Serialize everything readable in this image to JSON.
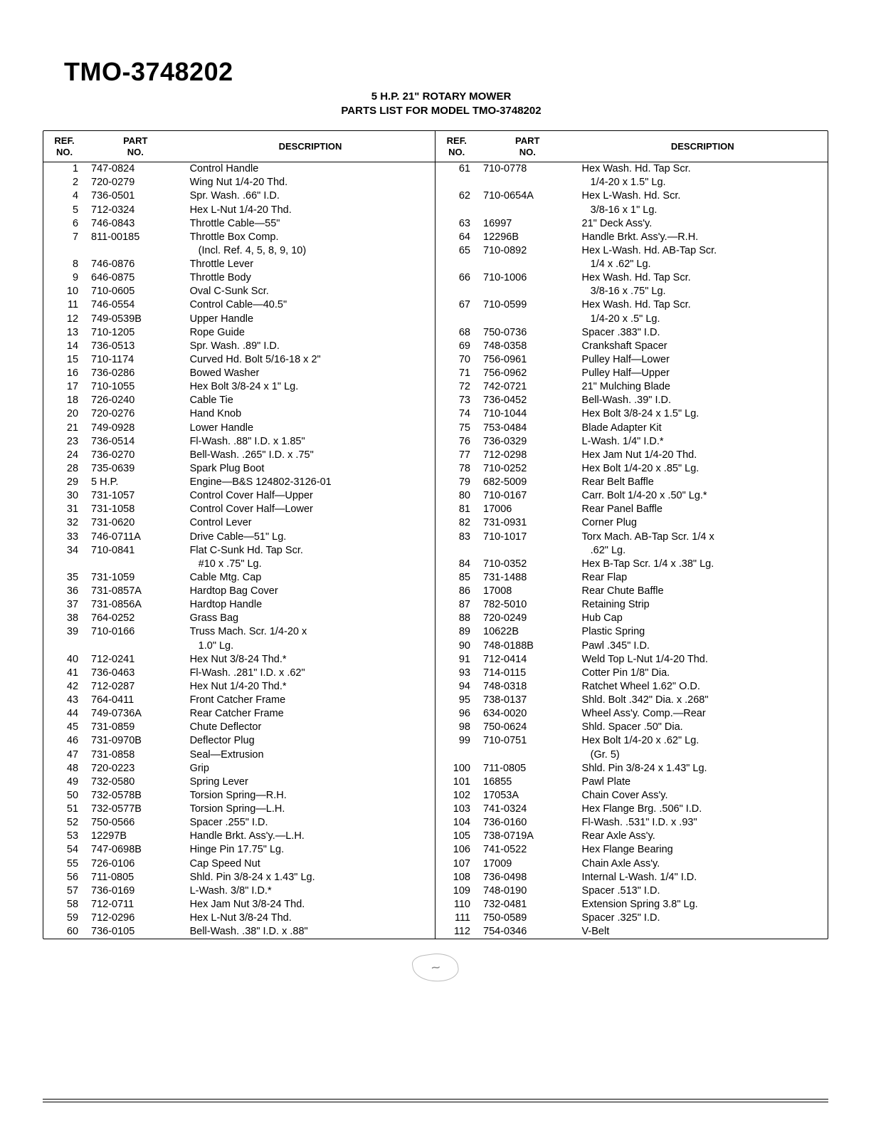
{
  "header": {
    "model": "TMO-3748202",
    "subtitle1": "5 H.P. 21\" ROTARY MOWER",
    "subtitle2": "PARTS LIST FOR MODEL TMO-3748202"
  },
  "columns": {
    "ref": "REF.\nNO.",
    "part": "PART\nNO.",
    "desc": "DESCRIPTION"
  },
  "left_rows": [
    {
      "ref": "1",
      "part": "747-0824",
      "desc": "Control Handle"
    },
    {
      "ref": "2",
      "part": "720-0279",
      "desc": "Wing Nut 1/4-20 Thd."
    },
    {
      "ref": "4",
      "part": "736-0501",
      "desc": "Spr. Wash. .66\" I.D."
    },
    {
      "ref": "5",
      "part": "712-0324",
      "desc": "Hex L-Nut 1/4-20 Thd."
    },
    {
      "ref": "6",
      "part": "746-0843",
      "desc": "Throttle Cable—55\""
    },
    {
      "ref": "7",
      "part": "811-00185",
      "desc": "Throttle Box Comp."
    },
    {
      "ref": "",
      "part": "",
      "desc": "   (Incl. Ref. 4, 5, 8, 9, 10)"
    },
    {
      "ref": "8",
      "part": "746-0876",
      "desc": "Throttle Lever"
    },
    {
      "ref": "9",
      "part": "646-0875",
      "desc": "Throttle Body"
    },
    {
      "ref": "10",
      "part": "710-0605",
      "desc": "Oval C-Sunk Scr."
    },
    {
      "ref": "11",
      "part": "746-0554",
      "desc": "Control Cable—40.5\""
    },
    {
      "ref": "12",
      "part": "749-0539B",
      "desc": "Upper Handle"
    },
    {
      "ref": "13",
      "part": "710-1205",
      "desc": "Rope Guide"
    },
    {
      "ref": "14",
      "part": "736-0513",
      "desc": "Spr. Wash. .89\" I.D."
    },
    {
      "ref": "15",
      "part": "710-1174",
      "desc": "Curved Hd. Bolt 5/16-18 x 2\""
    },
    {
      "ref": "16",
      "part": "736-0286",
      "desc": "Bowed Washer"
    },
    {
      "ref": "17",
      "part": "710-1055",
      "desc": "Hex Bolt 3/8-24 x 1\" Lg."
    },
    {
      "ref": "18",
      "part": "726-0240",
      "desc": "Cable Tie"
    },
    {
      "ref": "20",
      "part": "720-0276",
      "desc": "Hand Knob"
    },
    {
      "ref": "21",
      "part": "749-0928",
      "desc": "Lower Handle"
    },
    {
      "ref": "23",
      "part": "736-0514",
      "desc": "Fl-Wash. .88\" I.D. x 1.85\""
    },
    {
      "ref": "24",
      "part": "736-0270",
      "desc": "Bell-Wash. .265\" I.D. x .75\""
    },
    {
      "ref": "28",
      "part": "735-0639",
      "desc": "Spark Plug Boot"
    },
    {
      "ref": "29",
      "part": "5 H.P.",
      "desc": "Engine—B&S 124802-3126-01"
    },
    {
      "ref": "30",
      "part": "731-1057",
      "desc": "Control Cover Half—Upper"
    },
    {
      "ref": "31",
      "part": "731-1058",
      "desc": "Control Cover Half—Lower"
    },
    {
      "ref": "32",
      "part": "731-0620",
      "desc": "Control Lever"
    },
    {
      "ref": "33",
      "part": "746-0711A",
      "desc": "Drive Cable—51\" Lg."
    },
    {
      "ref": "34",
      "part": "710-0841",
      "desc": "Flat C-Sunk Hd. Tap Scr."
    },
    {
      "ref": "",
      "part": "",
      "desc": "   #10 x .75\" Lg."
    },
    {
      "ref": "35",
      "part": "731-1059",
      "desc": "Cable Mtg. Cap"
    },
    {
      "ref": "36",
      "part": "731-0857A",
      "desc": "Hardtop Bag Cover"
    },
    {
      "ref": "37",
      "part": "731-0856A",
      "desc": "Hardtop Handle"
    },
    {
      "ref": "38",
      "part": "764-0252",
      "desc": "Grass Bag"
    },
    {
      "ref": "39",
      "part": "710-0166",
      "desc": "Truss Mach. Scr. 1/4-20 x"
    },
    {
      "ref": "",
      "part": "",
      "desc": "   1.0\" Lg."
    },
    {
      "ref": "40",
      "part": "712-0241",
      "desc": "Hex Nut 3/8-24 Thd.*"
    },
    {
      "ref": "41",
      "part": "736-0463",
      "desc": "Fl-Wash. .281\" I.D. x .62\""
    },
    {
      "ref": "42",
      "part": "712-0287",
      "desc": "Hex Nut 1/4-20 Thd.*"
    },
    {
      "ref": "43",
      "part": "764-0411",
      "desc": "Front Catcher Frame"
    },
    {
      "ref": "44",
      "part": "749-0736A",
      "desc": "Rear Catcher Frame"
    },
    {
      "ref": "45",
      "part": "731-0859",
      "desc": "Chute Deflector"
    },
    {
      "ref": "46",
      "part": "731-0970B",
      "desc": "Deflector Plug"
    },
    {
      "ref": "47",
      "part": "731-0858",
      "desc": "Seal—Extrusion"
    },
    {
      "ref": "48",
      "part": "720-0223",
      "desc": "Grip"
    },
    {
      "ref": "49",
      "part": "732-0580",
      "desc": "Spring Lever"
    },
    {
      "ref": "50",
      "part": "732-0578B",
      "desc": "Torsion Spring—R.H."
    },
    {
      "ref": "51",
      "part": "732-0577B",
      "desc": "Torsion Spring—L.H."
    },
    {
      "ref": "52",
      "part": "750-0566",
      "desc": "Spacer .255\" I.D."
    },
    {
      "ref": "53",
      "part": "12297B",
      "desc": "Handle Brkt. Ass'y.—L.H."
    },
    {
      "ref": "54",
      "part": "747-0698B",
      "desc": "Hinge Pin 17.75\" Lg."
    },
    {
      "ref": "55",
      "part": "726-0106",
      "desc": "Cap Speed Nut"
    },
    {
      "ref": "56",
      "part": "711-0805",
      "desc": "Shld. Pin 3/8-24 x 1.43\" Lg."
    },
    {
      "ref": "57",
      "part": "736-0169",
      "desc": "L-Wash. 3/8\" I.D.*"
    },
    {
      "ref": "58",
      "part": "712-0711",
      "desc": "Hex Jam Nut 3/8-24 Thd."
    },
    {
      "ref": "59",
      "part": "712-0296",
      "desc": "Hex L-Nut 3/8-24 Thd."
    },
    {
      "ref": "60",
      "part": "736-0105",
      "desc": "Bell-Wash. .38\" I.D. x .88\""
    }
  ],
  "right_rows": [
    {
      "ref": "61",
      "part": "710-0778",
      "desc": "Hex Wash. Hd. Tap Scr."
    },
    {
      "ref": "",
      "part": "",
      "desc": "   1/4-20 x 1.5\" Lg."
    },
    {
      "ref": "62",
      "part": "710-0654A",
      "desc": "Hex L-Wash. Hd. Scr."
    },
    {
      "ref": "",
      "part": "",
      "desc": "   3/8-16 x 1\" Lg."
    },
    {
      "ref": "63",
      "part": "16997",
      "desc": "21\" Deck Ass'y."
    },
    {
      "ref": "64",
      "part": "12296B",
      "desc": "Handle Brkt. Ass'y.—R.H."
    },
    {
      "ref": "65",
      "part": "710-0892",
      "desc": "Hex L-Wash. Hd. AB-Tap Scr."
    },
    {
      "ref": "",
      "part": "",
      "desc": "   1/4 x .62\" Lg."
    },
    {
      "ref": "66",
      "part": "710-1006",
      "desc": "Hex Wash. Hd. Tap Scr."
    },
    {
      "ref": "",
      "part": "",
      "desc": "   3/8-16 x .75\" Lg."
    },
    {
      "ref": "67",
      "part": "710-0599",
      "desc": "Hex Wash. Hd. Tap Scr."
    },
    {
      "ref": "",
      "part": "",
      "desc": "   1/4-20 x .5\" Lg."
    },
    {
      "ref": "68",
      "part": "750-0736",
      "desc": "Spacer .383\" I.D."
    },
    {
      "ref": "69",
      "part": "748-0358",
      "desc": "Crankshaft Spacer"
    },
    {
      "ref": "70",
      "part": "756-0961",
      "desc": "Pulley Half—Lower"
    },
    {
      "ref": "71",
      "part": "756-0962",
      "desc": "Pulley Half—Upper"
    },
    {
      "ref": "72",
      "part": "742-0721",
      "desc": "21\" Mulching Blade"
    },
    {
      "ref": "73",
      "part": "736-0452",
      "desc": "Bell-Wash. .39\" I.D."
    },
    {
      "ref": "74",
      "part": "710-1044",
      "desc": "Hex Bolt 3/8-24 x 1.5\" Lg."
    },
    {
      "ref": "75",
      "part": "753-0484",
      "desc": "Blade Adapter Kit"
    },
    {
      "ref": "76",
      "part": "736-0329",
      "desc": "L-Wash. 1/4\" I.D.*"
    },
    {
      "ref": "77",
      "part": "712-0298",
      "desc": "Hex Jam Nut 1/4-20 Thd."
    },
    {
      "ref": "78",
      "part": "710-0252",
      "desc": "Hex Bolt 1/4-20 x .85\" Lg."
    },
    {
      "ref": "79",
      "part": "682-5009",
      "desc": "Rear Belt Baffle"
    },
    {
      "ref": "80",
      "part": "710-0167",
      "desc": "Carr. Bolt 1/4-20 x .50\" Lg.*"
    },
    {
      "ref": "81",
      "part": "17006",
      "desc": "Rear Panel Baffle"
    },
    {
      "ref": "82",
      "part": "731-0931",
      "desc": "Corner Plug"
    },
    {
      "ref": "83",
      "part": "710-1017",
      "desc": "Torx Mach. AB-Tap Scr. 1/4 x"
    },
    {
      "ref": "",
      "part": "",
      "desc": "   .62\" Lg."
    },
    {
      "ref": "84",
      "part": "710-0352",
      "desc": "Hex B-Tap Scr. 1/4 x .38\" Lg."
    },
    {
      "ref": "85",
      "part": "731-1488",
      "desc": "Rear Flap"
    },
    {
      "ref": "86",
      "part": "17008",
      "desc": "Rear Chute Baffle"
    },
    {
      "ref": "87",
      "part": "782-5010",
      "desc": "Retaining Strip"
    },
    {
      "ref": "88",
      "part": "720-0249",
      "desc": "Hub Cap"
    },
    {
      "ref": "89",
      "part": "10622B",
      "desc": "Plastic Spring"
    },
    {
      "ref": "90",
      "part": "748-0188B",
      "desc": "Pawl .345\" I.D."
    },
    {
      "ref": "91",
      "part": "712-0414",
      "desc": "Weld Top L-Nut 1/4-20 Thd."
    },
    {
      "ref": "93",
      "part": "714-0115",
      "desc": "Cotter Pin 1/8\" Dia."
    },
    {
      "ref": "94",
      "part": "748-0318",
      "desc": "Ratchet Wheel 1.62\" O.D."
    },
    {
      "ref": "95",
      "part": "738-0137",
      "desc": "Shld. Bolt .342\" Dia. x .268\""
    },
    {
      "ref": "96",
      "part": "634-0020",
      "desc": "Wheel Ass'y. Comp.—Rear"
    },
    {
      "ref": "98",
      "part": "750-0624",
      "desc": "Shld. Spacer .50\" Dia."
    },
    {
      "ref": "99",
      "part": "710-0751",
      "desc": "Hex Bolt 1/4-20 x .62\" Lg."
    },
    {
      "ref": "",
      "part": "",
      "desc": "   (Gr. 5)"
    },
    {
      "ref": "100",
      "part": "711-0805",
      "desc": "Shld. Pin 3/8-24 x 1.43\" Lg."
    },
    {
      "ref": "101",
      "part": "16855",
      "desc": "Pawl Plate"
    },
    {
      "ref": "102",
      "part": "17053A",
      "desc": "Chain Cover Ass'y."
    },
    {
      "ref": "103",
      "part": "741-0324",
      "desc": "Hex Flange Brg. .506\" I.D."
    },
    {
      "ref": "104",
      "part": "736-0160",
      "desc": "Fl-Wash. .531\" I.D. x .93\""
    },
    {
      "ref": "105",
      "part": "738-0719A",
      "desc": "Rear Axle Ass'y."
    },
    {
      "ref": "106",
      "part": "741-0522",
      "desc": "Hex Flange Bearing"
    },
    {
      "ref": "107",
      "part": "17009",
      "desc": "Chain Axle Ass'y."
    },
    {
      "ref": "108",
      "part": "736-0498",
      "desc": "Internal L-Wash. 1/4\" I.D."
    },
    {
      "ref": "109",
      "part": "748-0190",
      "desc": "Spacer .513\" I.D."
    },
    {
      "ref": "110",
      "part": "732-0481",
      "desc": "Extension Spring 3.8\" Lg."
    },
    {
      "ref": "111",
      "part": "750-0589",
      "desc": "Spacer .325\" I.D."
    },
    {
      "ref": "112",
      "part": "754-0346",
      "desc": "V-Belt"
    }
  ],
  "styling": {
    "page_bg": "#ffffff",
    "text_color": "#000000",
    "border_color": "#000000",
    "title_fontsize": 36,
    "subtitle_fontsize": 15,
    "body_fontsize": 14.5,
    "header_fontsize": 13,
    "line_height": 1.32
  }
}
